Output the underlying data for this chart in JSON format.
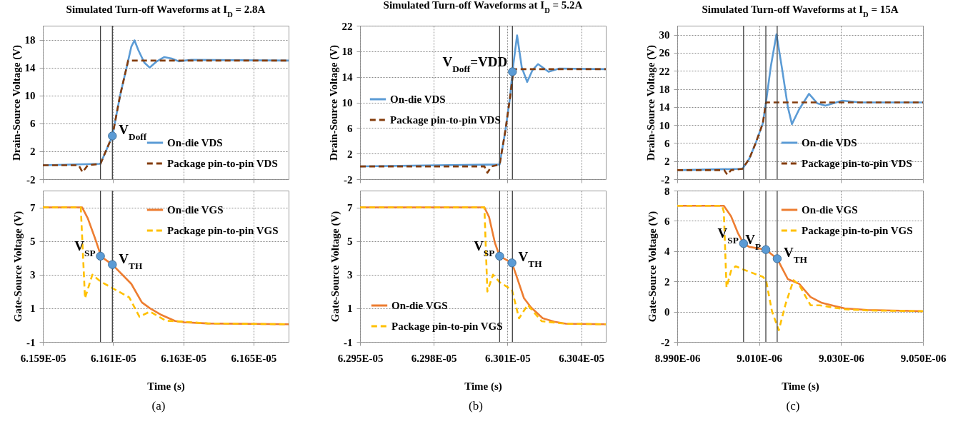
{
  "chart_data": [
    {
      "type": "line",
      "title": "Simulated Turn-off Waveforms at I$_{D}$ = 2.8A",
      "ylabel": "Drain-Source Voltage (V)",
      "xlim": [
        6.159e-05,
        6.166e-05
      ],
      "xticks": [
        {
          "value": 6.159e-05,
          "label": null
        },
        {
          "value": 6.161e-05,
          "label": null
        },
        {
          "value": 6.163e-05,
          "label": null
        },
        {
          "value": 6.165e-05,
          "label": null
        }
      ],
      "ylim": [
        -2,
        20
      ],
      "yticks": [
        -2,
        2,
        6,
        10,
        14,
        18
      ],
      "grid": true,
      "legend": "bottom right",
      "tick_labels": "y",
      "series": [
        {
          "name": "On-die VDS",
          "color": "#5b9bd5",
          "line_style": "solid",
          "x": [
            6.159e-05,
            6.16064e-05,
            6.16098e-05,
            6.1612e-05,
            6.16143e-05,
            6.16152e-05,
            6.16161e-05,
            6.16172e-05,
            6.16189e-05,
            6.16204e-05,
            6.16225e-05,
            6.16246e-05,
            6.16267e-05,
            6.16287e-05,
            6.16323e-05,
            6.166e-05
          ],
          "values": [
            0,
            0.2,
            4.2,
            10,
            15,
            17,
            17.9,
            16.5,
            14.7,
            14,
            14.9,
            15.5,
            15.3,
            14.9,
            15.1,
            15
          ]
        },
        {
          "name": "Package pin-to-pin VDS",
          "color": "#843c0c",
          "line_style": "dashed",
          "x": [
            6.159e-05,
            6.16002e-05,
            6.16013e-05,
            6.16028e-05,
            6.16064e-05,
            6.16098e-05,
            6.1612e-05,
            6.16143e-05,
            6.166e-05
          ],
          "values": [
            0,
            0,
            -1,
            0,
            0.2,
            4.2,
            10,
            15,
            15
          ]
        }
      ],
      "ref_lines": [
        {
          "axis": "x",
          "value": 6.16064e-05,
          "color": "#404040"
        },
        {
          "axis": "x",
          "value": 6.16098e-05,
          "color": "#404040"
        }
      ],
      "annotations": [
        {
          "text": "V$_{Doff}$",
          "x": 6.16098e-05,
          "y": 4.2
        }
      ]
    },
    {
      "type": "line",
      "title": "Simulated Turn-off Waveforms at I$_{D}$ = 5.2A",
      "ylabel": "Drain-Source Voltage (V)",
      "xlim": [
        6.295e-05,
        6.305e-05
      ],
      "xticks": [
        {
          "value": 6.295e-05,
          "label": null
        },
        {
          "value": 6.298e-05,
          "label": null
        },
        {
          "value": 6.301e-05,
          "label": null
        },
        {
          "value": 6.304e-05,
          "label": null
        }
      ],
      "ylim": [
        -2,
        22
      ],
      "yticks": [
        -2,
        2,
        6,
        10,
        14,
        18,
        22
      ],
      "grid": true,
      "legend": "left",
      "tick_labels": "y",
      "series": [
        {
          "name": "On-die VDS",
          "color": "#5b9bd5",
          "line_style": "solid",
          "x": [
            6.295e-05,
            6.30068e-05,
            6.30091e-05,
            6.3011e-05,
            6.3012e-05,
            6.30139e-05,
            6.30158e-05,
            6.3018e-05,
            6.30201e-05,
            6.30224e-05,
            6.30267e-05,
            6.3031e-05,
            6.305e-05
          ],
          "values": [
            0,
            0.3,
            5.5,
            10.7,
            14.8,
            20.5,
            15.5,
            13.2,
            15,
            16,
            14.8,
            15.3,
            15.2
          ]
        },
        {
          "name": "Package pin-to-pin VDS",
          "color": "#843c0c",
          "line_style": "dashed",
          "x": [
            6.295e-05,
            6.30006e-05,
            6.30018e-05,
            6.30035e-05,
            6.30068e-05,
            6.30091e-05,
            6.3011e-05,
            6.30125e-05,
            6.305e-05
          ],
          "values": [
            0,
            0,
            -1,
            0,
            0.3,
            5.5,
            10.7,
            15.2,
            15.2
          ]
        }
      ],
      "ref_lines": [
        {
          "axis": "x",
          "value": 6.30068e-05,
          "color": "#404040"
        },
        {
          "axis": "x",
          "value": 6.3012e-05,
          "color": "#404040"
        }
      ],
      "annotations": [
        {
          "text": "V$_{Doff}$=VDD",
          "x": 6.3012e-05,
          "y": 14.8
        }
      ]
    },
    {
      "type": "line",
      "title": "Simulated Turn-off Waveforms at I$_{D}$ = 15A",
      "ylabel": "Drain-Source Voltage (V)",
      "xlim": [
        8.99e-06,
        9.05e-06
      ],
      "xticks": [
        {
          "value": 8.99e-06,
          "label": null
        },
        {
          "value": 9.01e-06,
          "label": null
        },
        {
          "value": 9.03e-06,
          "label": null
        },
        {
          "value": 9.05e-06,
          "label": null
        }
      ],
      "ylim": [
        -2,
        32
      ],
      "yticks": [
        -2,
        2,
        6,
        10,
        14,
        18,
        22,
        26,
        30
      ],
      "grid": true,
      "legend": "bottom right",
      "tick_labels": "y",
      "series": [
        {
          "name": "On-die VDS",
          "color": "#5b9bd5",
          "line_style": "solid",
          "x": [
            8.99e-06,
            9.00591e-06,
            9.00758e-06,
            9.00924e-06,
            9.0109e-06,
            9.01168e-06,
            9.01285e-06,
            9.01423e-06,
            9.01562e-06,
            9.017e-06,
            9.018e-06,
            9.01978e-06,
            9.02216e-06,
            9.02421e-06,
            9.02615e-06,
            9.03031e-06,
            9.03475e-06,
            9.05e-06
          ],
          "values": [
            0,
            0.3,
            2.5,
            6.2,
            10.4,
            15.1,
            23,
            30.1,
            22.3,
            14,
            10.2,
            13.5,
            16.9,
            14.8,
            14.3,
            15.4,
            15,
            15
          ]
        },
        {
          "name": "Package pin-to-pin VDS",
          "color": "#843c0c",
          "line_style": "dashed",
          "x": [
            8.99e-06,
            9.00148e-06,
            9.0022e-06,
            9.00314e-06,
            9.00591e-06,
            9.00758e-06,
            9.00924e-06,
            9.0109e-06,
            9.01168e-06,
            9.05e-06
          ],
          "values": [
            0,
            0,
            -1,
            0,
            0.3,
            2.5,
            6.2,
            10.4,
            15,
            15
          ]
        }
      ],
      "ref_lines": [
        {
          "axis": "x",
          "value": 9.00619e-06,
          "color": "#404040"
        },
        {
          "axis": "x",
          "value": 9.01163e-06,
          "color": "#404040"
        },
        {
          "axis": "x",
          "value": 9.0144e-06,
          "color": "#404040"
        }
      ]
    },
    {
      "type": "line",
      "xlabel": "Time (s)",
      "ylabel": "Gate-Source Voltage (V)",
      "xlim": [
        6.159e-05,
        6.166e-05
      ],
      "xticks": [
        {
          "value": 6.159e-05,
          "label": "6.159E-05"
        },
        {
          "value": 6.161e-05,
          "label": "6.161E-05"
        },
        {
          "value": 6.163e-05,
          "label": "6.163E-05"
        },
        {
          "value": 6.165e-05,
          "label": "6.165E-05"
        }
      ],
      "ylim": [
        -1,
        8
      ],
      "yticks": [
        -1,
        1,
        3,
        5,
        7
      ],
      "grid": true,
      "legend": "top right",
      "series": [
        {
          "name": "On-die VGS",
          "color": "#ed7d31",
          "line_style": "solid",
          "x": [
            6.159e-05,
            6.16012e-05,
            6.16028e-05,
            6.16048e-05,
            6.16061e-05,
            6.16064e-05,
            6.16098e-05,
            6.16152e-05,
            6.16182e-05,
            6.16205e-05,
            6.16238e-05,
            6.16277e-05,
            6.16303e-05,
            6.16369e-05,
            6.166e-05
          ],
          "values": [
            7,
            7,
            6.35,
            5.2,
            4.4,
            4.1,
            3.6,
            2.45,
            1.35,
            1,
            0.6,
            0.24,
            0.17,
            0.1,
            0.05
          ]
        },
        {
          "name": "Package pin-to-pin VGS",
          "color": "#ffc000",
          "line_style": "dashed",
          "x": [
            6.159e-05,
            6.16008e-05,
            6.1602e-05,
            6.16041e-05,
            6.16064e-05,
            6.16098e-05,
            6.16146e-05,
            6.16175e-05,
            6.16205e-05,
            6.16251e-05,
            6.16303e-05,
            6.16369e-05,
            6.166e-05
          ],
          "values": [
            7,
            7,
            1.6,
            3,
            2.6,
            2.2,
            1.65,
            0.5,
            0.8,
            0.26,
            0.2,
            0.1,
            0.05
          ]
        }
      ],
      "ref_lines": [
        {
          "axis": "x",
          "value": 6.16064e-05,
          "color": "#404040"
        },
        {
          "axis": "x",
          "value": 6.16098e-05,
          "color": "#404040"
        }
      ],
      "annotations": [
        {
          "text": "V$_{SP}$",
          "x": 6.16064e-05,
          "y": 4.1
        },
        {
          "text": "V$_{TH}$",
          "x": 6.16098e-05,
          "y": 3.6
        },
        "(a)"
      ]
    },
    {
      "type": "line",
      "xlabel": "Time (s)",
      "ylabel": "Gate-Source Voltage (V)",
      "xlim": [
        6.295e-05,
        6.305e-05
      ],
      "xticks": [
        {
          "value": 6.295e-05,
          "label": "6.295E-05"
        },
        {
          "value": 6.298e-05,
          "label": "6.298E-05"
        },
        {
          "value": 6.301e-05,
          "label": "6.301E-05"
        },
        {
          "value": 6.304e-05,
          "label": "6.304E-05"
        }
      ],
      "ylim": [
        -1,
        8
      ],
      "yticks": [
        -1,
        1,
        3,
        5,
        7
      ],
      "grid": true,
      "legend": "bottom left",
      "series": [
        {
          "name": "On-die VGS",
          "color": "#ed7d31",
          "line_style": "solid",
          "x": [
            6.295e-05,
            6.30006e-05,
            6.30025e-05,
            6.30049e-05,
            6.30068e-05,
            6.30118e-05,
            6.30134e-05,
            6.30167e-05,
            6.30196e-05,
            6.30243e-05,
            6.30291e-05,
            6.30338e-05,
            6.305e-05
          ],
          "values": [
            7,
            7,
            6.43,
            4.88,
            4.1,
            3.7,
            3.03,
            1.6,
            1.05,
            0.41,
            0.2,
            0.08,
            0.05
          ]
        },
        {
          "name": "Package pin-to-pin VGS",
          "color": "#ffc000",
          "line_style": "dashed",
          "x": [
            6.295e-05,
            6.30006e-05,
            6.30018e-05,
            6.30041e-05,
            6.30068e-05,
            6.30118e-05,
            6.30147e-05,
            6.30182e-05,
            6.30239e-05,
            6.30291e-05,
            6.30338e-05,
            6.305e-05
          ],
          "values": [
            7,
            7,
            2,
            3,
            2.55,
            2.1,
            0.4,
            1.2,
            0.23,
            0.15,
            0.08,
            0.05
          ]
        }
      ],
      "ref_lines": [
        {
          "axis": "x",
          "value": 6.30068e-05,
          "color": "#404040"
        },
        {
          "axis": "x",
          "value": 6.3012e-05,
          "color": "#404040"
        }
      ],
      "annotations": [
        {
          "text": "V$_{SP}$",
          "x": 6.30068e-05,
          "y": 4.1
        },
        {
          "text": "V$_{TH}$",
          "x": 6.30118e-05,
          "y": 3.7
        },
        "(b)"
      ]
    },
    {
      "type": "line",
      "xlabel": "Time (s)",
      "ylabel": "Gate-Source Voltage (V)",
      "xlim": [
        8.99e-06,
        9.05e-06
      ],
      "xticks": [
        {
          "value": 8.99e-06,
          "label": "8.990E-06"
        },
        {
          "value": 9.01e-06,
          "label": "9.010E-06"
        },
        {
          "value": 9.03e-06,
          "label": "9.030E-06"
        },
        {
          "value": 9.05e-06,
          "label": "9.050E-06"
        }
      ],
      "ylim": [
        -2,
        8
      ],
      "yticks": [
        -2,
        0,
        2,
        4,
        6,
        8
      ],
      "grid": true,
      "legend": "top right",
      "series": [
        {
          "name": "On-die VGS",
          "color": "#ed7d31",
          "line_style": "solid",
          "x": [
            8.99e-06,
            9.00137e-06,
            9.00314e-06,
            9.0048e-06,
            9.00619e-06,
            9.00758e-06,
            9.01163e-06,
            9.0144e-06,
            9.01562e-06,
            9.017e-06,
            9.01978e-06,
            9.02255e-06,
            9.02532e-06,
            9.0281e-06,
            9.03087e-06,
            9.03641e-06,
            9.05e-06
          ],
          "values": [
            7,
            7,
            6.3,
            5.2,
            4.5,
            4.28,
            4.1,
            3.5,
            2.86,
            2.15,
            1.84,
            0.97,
            0.58,
            0.39,
            0.22,
            0.11,
            0.03
          ]
        },
        {
          "name": "Package pin-to-pin VGS",
          "color": "#ffc000",
          "line_style": "dashed",
          "x": [
            8.99e-06,
            9.00092e-06,
            9.00137e-06,
            9.00203e-06,
            9.00314e-06,
            9.00425e-06,
            9.00619e-06,
            9.0109e-06,
            9.01168e-06,
            9.01312e-06,
            9.01479e-06,
            9.01645e-06,
            9.01839e-06,
            9.01978e-06,
            9.02255e-06,
            9.02477e-06,
            9.0281e-06,
            9.03087e-06,
            9.03641e-06,
            9.05e-06
          ],
          "values": [
            7,
            7,
            6.6,
            1.6,
            2.7,
            3,
            2.78,
            2.3,
            2.08,
            0.03,
            -1.23,
            0.5,
            2.08,
            1.76,
            0.42,
            0.42,
            0.27,
            0.16,
            0.08,
            0.03
          ]
        }
      ],
      "ref_lines": [
        {
          "axis": "x",
          "value": 9.00619e-06,
          "color": "#404040"
        },
        {
          "axis": "x",
          "value": 9.01163e-06,
          "color": "#404040"
        },
        {
          "axis": "x",
          "value": 9.0144e-06,
          "color": "#404040"
        }
      ],
      "annotations": [
        {
          "text": "V$_{SP}$",
          "x": 9.00619e-06,
          "y": 4.5
        },
        {
          "text": "V$_{P}$",
          "x": 9.01163e-06,
          "y": 4.1
        },
        {
          "text": "V$_{TH}$",
          "x": 9.0144e-06,
          "y": 3.5
        },
        "(c)"
      ]
    }
  ]
}
